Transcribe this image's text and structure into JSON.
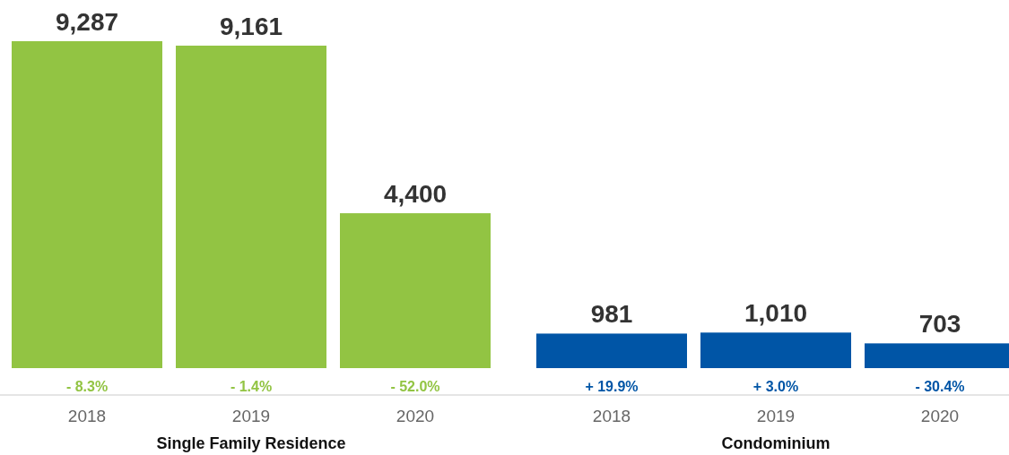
{
  "chart_data": {
    "type": "bar",
    "categories": [
      "2018",
      "2019",
      "2020",
      "2018",
      "2019",
      "2020"
    ],
    "values": [
      9287,
      9161,
      4400,
      981,
      1010,
      703
    ],
    "colors": [
      "#92c443",
      "#92c443",
      "#92c443",
      "#0055a6",
      "#0055a6",
      "#0055a6"
    ],
    "value_labels": [
      "9,287",
      "9,161",
      "4,400",
      "981",
      "1,010",
      "703"
    ],
    "annotations": [
      "- 8.3%",
      "- 1.4%",
      "- 52.0%",
      "+ 19.9%",
      "+ 3.0%",
      "- 30.4%",
      "Single Family Residence",
      "Condominium"
    ]
  }
}
